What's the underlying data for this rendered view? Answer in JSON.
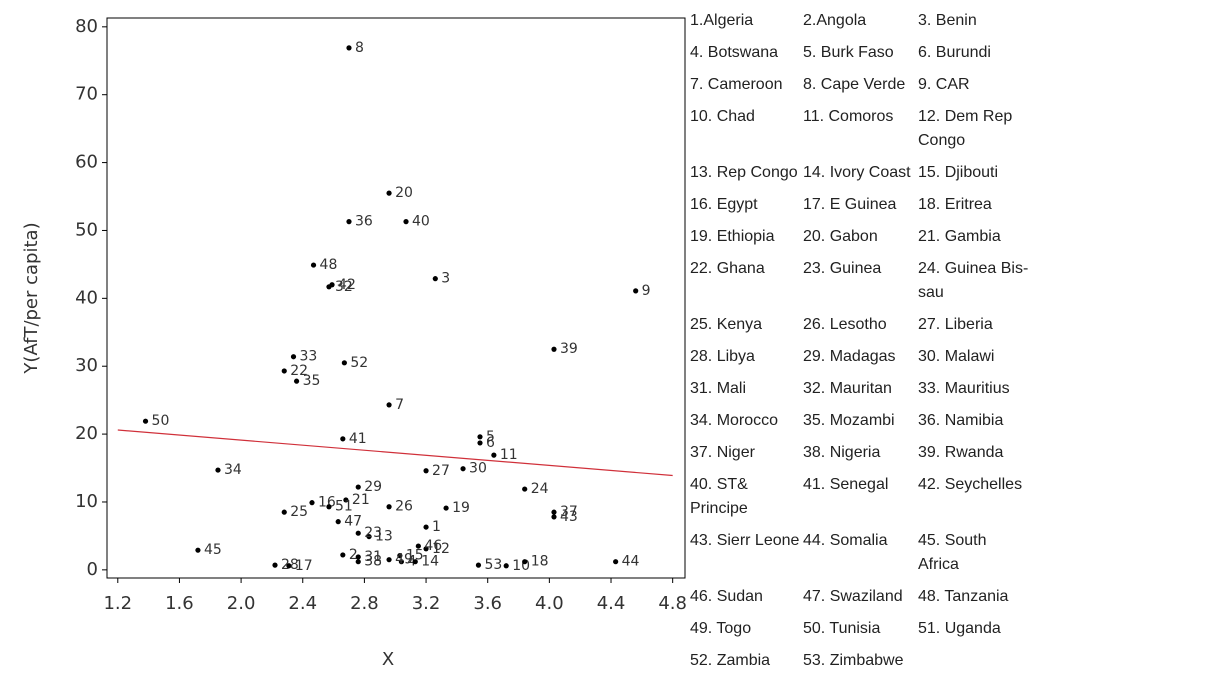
{
  "chart_data": {
    "type": "scatter",
    "x_label": "X",
    "y_label": "Y(AfT/per capita)",
    "xlim": [
      1.13,
      4.88
    ],
    "ylim": [
      -1.2,
      81.3
    ],
    "xticks": [
      1.2,
      1.6,
      {
        "value": 2,
        "label": "2.0"
      },
      2.4,
      2.8,
      3.2,
      3.6,
      {
        "value": 4,
        "label": "4.0"
      },
      4.4,
      4.8
    ],
    "yticks": [
      0,
      10,
      20,
      30,
      40,
      50,
      60,
      70,
      80
    ],
    "color": "#000000",
    "point_labels": [
      "1",
      "2",
      "3",
      "4",
      "5",
      "6",
      "7",
      "8",
      "9",
      "10",
      "11",
      "12",
      "13",
      "14",
      "15",
      "16",
      "17",
      "18",
      "19",
      "20",
      "21",
      "22",
      "23",
      "24",
      "25",
      "26",
      "27",
      "28",
      "29",
      "30",
      "31",
      "32",
      "33",
      "34",
      "35",
      "36",
      "37",
      "38",
      "39",
      "40",
      "41",
      "42",
      "43",
      "44",
      "45",
      "46",
      "47",
      "48",
      "49",
      "50",
      "51",
      "52",
      "53"
    ],
    "x": [
      3.2,
      2.66,
      3.26,
      3.04,
      3.55,
      3.55,
      2.96,
      2.7,
      4.56,
      3.72,
      3.64,
      3.2,
      2.83,
      3.13,
      3.03,
      2.46,
      2.31,
      3.84,
      3.33,
      2.96,
      2.68,
      2.28,
      2.76,
      3.84,
      2.28,
      2.96,
      3.2,
      2.22,
      2.76,
      3.44,
      2.76,
      2.57,
      2.34,
      1.85,
      2.36,
      2.7,
      4.03,
      2.76,
      4.03,
      3.07,
      2.66,
      2.59,
      4.03,
      4.43,
      1.72,
      3.15,
      2.63,
      2.47,
      2.96,
      1.38,
      2.57,
      2.67,
      3.54
    ],
    "values": [
      6.3,
      2.2,
      42.9,
      1.2,
      19.6,
      18.7,
      24.3,
      76.9,
      41.1,
      0.6,
      16.9,
      3.1,
      4.9,
      1.2,
      2.1,
      9.9,
      0.6,
      1.2,
      9.1,
      55.5,
      10.3,
      29.3,
      5.4,
      11.9,
      8.5,
      9.3,
      14.6,
      0.7,
      12.2,
      14.9,
      1.9,
      41.7,
      31.4,
      14.7,
      27.8,
      51.3,
      8.5,
      1.2,
      32.5,
      51.3,
      19.3,
      42.0,
      7.8,
      1.2,
      2.9,
      3.5,
      7.1,
      44.9,
      1.5,
      21.9,
      9.3,
      30.5,
      0.7
    ],
    "fit_line": {
      "color": "#d0303a",
      "x": [
        1.2,
        4.8
      ],
      "values": [
        20.6,
        13.9
      ]
    }
  },
  "country_key": [
    "1.Algeria",
    "2.Angola",
    "3. Benin",
    "4. Botswana",
    "5. Burk Faso",
    "6. Burundi",
    "7. Cameroon",
    "8. Cape Verde",
    "9. CAR",
    "10. Chad",
    "11. Comoros",
    "12. Dem Rep Congo",
    "13. Rep Congo",
    "14. Ivory Coast",
    "15. Djibouti",
    "16. Egypt",
    "17. E Guinea",
    "18. Eritrea",
    "19. Ethiopia",
    "20. Gabon",
    "21. Gambia",
    "22. Ghana",
    "23. Guinea",
    "24. Guinea Bis-sau",
    "25. Kenya",
    "26. Lesotho",
    "27. Liberia",
    "28. Libya",
    "29. Madagas",
    "30. Malawi",
    "31. Mali",
    "32. Mauritan",
    "33. Mauritius",
    "34. Morocco",
    "35. Mozambi",
    "36. Namibia",
    "37. Niger",
    "38. Nigeria",
    "39. Rwanda",
    "40. ST& Principe",
    "41. Senegal",
    "42. Seychelles",
    "43. Sierr Leone",
    "44. Somalia",
    "45. South Africa",
    "46. Sudan",
    "47. Swaziland",
    "48. Tanzania",
    "49. Togo",
    "50. Tunisia",
    "51. Uganda",
    "52. Zambia",
    "53. Zimbabwe"
  ]
}
